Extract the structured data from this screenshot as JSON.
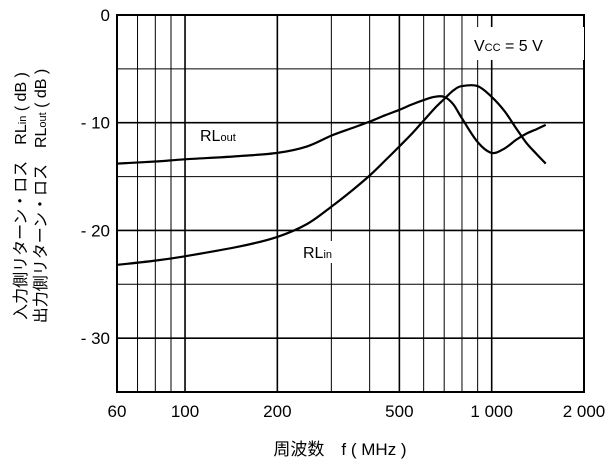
{
  "chart_data": {
    "type": "line",
    "x_scale": "log",
    "xlim": [
      60,
      2000
    ],
    "ylim": [
      -35,
      0
    ],
    "x_ticks": [
      60,
      100,
      200,
      500,
      1000,
      2000
    ],
    "x_tick_labels": [
      "60",
      "100",
      "200",
      "500",
      "1 000",
      "2 000"
    ],
    "y_ticks": [
      0,
      -10,
      -20,
      -30
    ],
    "y_tick_labels": [
      "0",
      "- 10",
      "- 20",
      "- 30"
    ],
    "x_minor_ticks": [
      70,
      80,
      90,
      300,
      400,
      600,
      700,
      800,
      900
    ],
    "y_minor_ticks": [
      -5,
      -15,
      -25
    ],
    "grid": true,
    "xlabel": "周波数　f ( MHz )",
    "ylabel_line1": "入力側リターン・ロス　RL",
    "ylabel_line1_sub": "in",
    "ylabel_line1_unit": " ( dB )",
    "ylabel_line2": "出力側リターン・ロス　RL",
    "ylabel_line2_sub": "out",
    "ylabel_line2_unit": " ( dB )",
    "annotation": {
      "main": "V",
      "sub": "CC",
      "rest": " = 5 V"
    },
    "series": [
      {
        "label_main": "RL",
        "label_sub": "out",
        "x": [
          60,
          80,
          100,
          150,
          200,
          250,
          300,
          350,
          400,
          450,
          500,
          550,
          600,
          650,
          700,
          750,
          800,
          900,
          1000,
          1100,
          1200,
          1300,
          1400,
          1500
        ],
        "y": [
          -13.8,
          -13.6,
          -13.4,
          -13.1,
          -12.8,
          -12.2,
          -11.2,
          -10.5,
          -9.9,
          -9.3,
          -8.8,
          -8.3,
          -7.9,
          -7.6,
          -7.6,
          -8.3,
          -9.6,
          -11.8,
          -12.8,
          -12.4,
          -11.6,
          -11.0,
          -10.6,
          -10.2
        ]
      },
      {
        "label_main": "RL",
        "label_sub": "in",
        "x": [
          60,
          80,
          100,
          150,
          200,
          250,
          300,
          350,
          400,
          450,
          500,
          550,
          600,
          650,
          700,
          750,
          800,
          900,
          1000,
          1100,
          1200,
          1300,
          1400,
          1500
        ],
        "y": [
          -23.2,
          -22.8,
          -22.4,
          -21.5,
          -20.6,
          -19.4,
          -17.8,
          -16.3,
          -14.9,
          -13.5,
          -12.2,
          -11.0,
          -9.8,
          -8.7,
          -7.8,
          -7.0,
          -6.6,
          -6.6,
          -7.6,
          -8.9,
          -10.5,
          -11.9,
          -12.9,
          -13.8
        ]
      }
    ]
  }
}
